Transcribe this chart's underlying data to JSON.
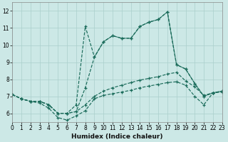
{
  "xlabel": "Humidex (Indice chaleur)",
  "xlim": [
    0,
    23
  ],
  "ylim": [
    5.5,
    12.5
  ],
  "yticks": [
    6,
    7,
    8,
    9,
    10,
    11,
    12
  ],
  "xticks": [
    0,
    1,
    2,
    3,
    4,
    5,
    6,
    7,
    8,
    9,
    10,
    11,
    12,
    13,
    14,
    15,
    16,
    17,
    18,
    19,
    20,
    21,
    22,
    23
  ],
  "bg_color": "#cce8e6",
  "grid_color": "#aacfcc",
  "line_color": "#1a6b5a",
  "lines": [
    {
      "y": [
        7.1,
        6.85,
        6.7,
        6.7,
        6.5,
        6.0,
        6.0,
        6.5,
        11.1,
        9.3,
        10.2,
        10.55,
        10.4,
        10.4,
        11.1,
        11.35,
        11.5,
        11.95,
        8.85,
        8.6,
        7.75,
        7.0,
        7.2,
        7.3
      ]
    },
    {
      "y": [
        7.1,
        6.85,
        6.7,
        6.7,
        6.5,
        6.0,
        6.0,
        6.1,
        7.5,
        9.3,
        10.2,
        10.55,
        10.4,
        10.4,
        11.1,
        11.35,
        11.5,
        11.95,
        8.85,
        8.6,
        7.75,
        7.0,
        7.2,
        7.3
      ]
    },
    {
      "y": [
        7.1,
        6.85,
        6.7,
        6.7,
        6.5,
        6.0,
        6.0,
        6.1,
        6.5,
        7.0,
        7.3,
        7.5,
        7.65,
        7.8,
        7.95,
        8.05,
        8.15,
        8.3,
        8.4,
        7.9,
        7.55,
        7.05,
        7.2,
        7.3
      ]
    },
    {
      "y": [
        7.1,
        6.85,
        6.7,
        6.6,
        6.3,
        5.75,
        5.6,
        5.85,
        6.15,
        6.85,
        7.05,
        7.15,
        7.25,
        7.35,
        7.5,
        7.6,
        7.7,
        7.8,
        7.85,
        7.65,
        7.0,
        6.5,
        7.2,
        7.25
      ]
    }
  ]
}
